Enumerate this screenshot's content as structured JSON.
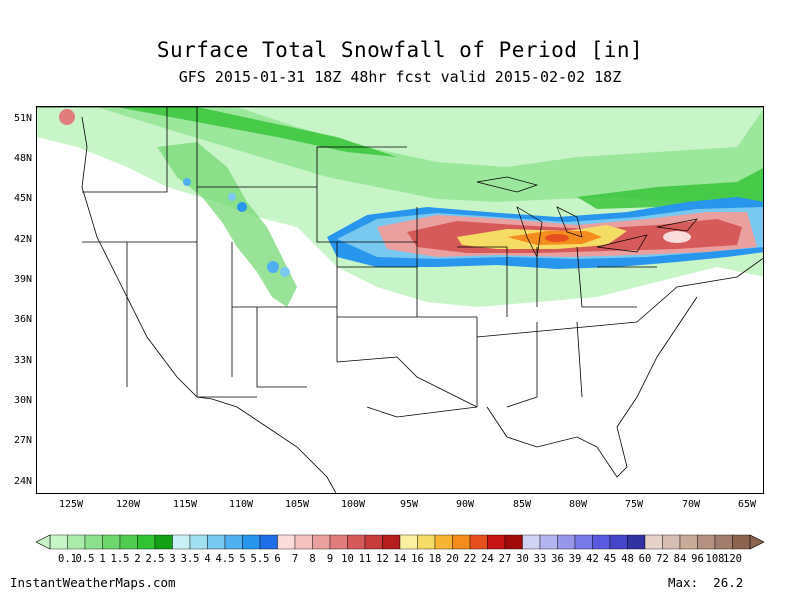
{
  "title": "Surface Total Snowfall of Period [in]",
  "subtitle": "GFS 2015-01-31 18Z 48hr fcst valid 2015-02-02 18Z",
  "lat_labels": [
    "51N",
    "48N",
    "45N",
    "42N",
    "39N",
    "36N",
    "33N",
    "30N",
    "27N",
    "24N"
  ],
  "lon_labels": [
    "125W",
    "120W",
    "115W",
    "110W",
    "105W",
    "100W",
    "95W",
    "90W",
    "85W",
    "80W",
    "75W",
    "70W",
    "65W"
  ],
  "colorbar": {
    "labels": [
      "0.1",
      "0.5",
      "1",
      "1.5",
      "2",
      "2.5",
      "3",
      "3.5",
      "4",
      "4.5",
      "5",
      "5.5",
      "6",
      "7",
      "8",
      "9",
      "10",
      "11",
      "12",
      "14",
      "16",
      "18",
      "20",
      "22",
      "24",
      "27",
      "30",
      "33",
      "36",
      "39",
      "42",
      "45",
      "48",
      "60",
      "72",
      "84",
      "96",
      "108",
      "120"
    ],
    "colors": [
      "#c8f5c8",
      "#aaebaa",
      "#8ce18c",
      "#6ed76e",
      "#50cd50",
      "#32c332",
      "#14a014",
      "#c8f0f5",
      "#a0e0f0",
      "#78c8ef",
      "#50b0ef",
      "#2896ec",
      "#1e6ee6",
      "#fadcdc",
      "#f5c0c0",
      "#eba0a0",
      "#e17d7d",
      "#d75a5a",
      "#c83c3c",
      "#b41e1e",
      "#faf0a0",
      "#f5dc64",
      "#f5b432",
      "#f58c1e",
      "#e6501e",
      "#c81414",
      "#a00a0a",
      "#d2d2f5",
      "#b4b4f0",
      "#9696eb",
      "#7878e6",
      "#5a5ae1",
      "#4646c8",
      "#3232a0",
      "#e6d2c8",
      "#d7beb4",
      "#c8aa9b",
      "#b49182",
      "#a07d6e",
      "#8c6450"
    ]
  },
  "credit": "InstantWeatherMaps.com",
  "max_label": "Max:",
  "max_value": "26.2"
}
